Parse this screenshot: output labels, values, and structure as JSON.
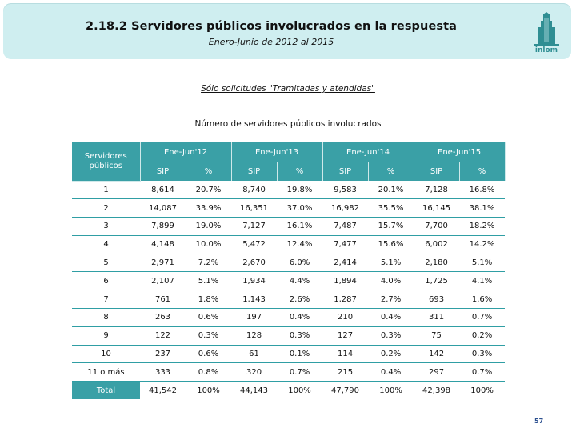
{
  "header": {
    "title": "2.18.2 Servidores públicos involucrados en la respuesta",
    "subtitle": "Enero-Junio de 2012 al 2015",
    "logo_text": "inlom"
  },
  "note": "Sólo solicitudes \"Tramitadas y atendidas\"",
  "table": {
    "title": "Número de servidores públicos involucrados",
    "row_header": "Servidores públicos",
    "periods": [
      "Ene-Jun'12",
      "Ene-Jun'13",
      "Ene-Jun'14",
      "Ene-Jun'15"
    ],
    "sub_headers": [
      "SIP",
      "%"
    ],
    "rows": [
      {
        "label": "1",
        "values": [
          "8,614",
          "20.7%",
          "8,740",
          "19.8%",
          "9,583",
          "20.1%",
          "7,128",
          "16.8%"
        ]
      },
      {
        "label": "2",
        "values": [
          "14,087",
          "33.9%",
          "16,351",
          "37.0%",
          "16,982",
          "35.5%",
          "16,145",
          "38.1%"
        ]
      },
      {
        "label": "3",
        "values": [
          "7,899",
          "19.0%",
          "7,127",
          "16.1%",
          "7,487",
          "15.7%",
          "7,700",
          "18.2%"
        ]
      },
      {
        "label": "4",
        "values": [
          "4,148",
          "10.0%",
          "5,472",
          "12.4%",
          "7,477",
          "15.6%",
          "6,002",
          "14.2%"
        ]
      },
      {
        "label": "5",
        "values": [
          "2,971",
          "7.2%",
          "2,670",
          "6.0%",
          "2,414",
          "5.1%",
          "2,180",
          "5.1%"
        ]
      },
      {
        "label": "6",
        "values": [
          "2,107",
          "5.1%",
          "1,934",
          "4.4%",
          "1,894",
          "4.0%",
          "1,725",
          "4.1%"
        ]
      },
      {
        "label": "7",
        "values": [
          "761",
          "1.8%",
          "1,143",
          "2.6%",
          "1,287",
          "2.7%",
          "693",
          "1.6%"
        ]
      },
      {
        "label": "8",
        "values": [
          "263",
          "0.6%",
          "197",
          "0.4%",
          "210",
          "0.4%",
          "311",
          "0.7%"
        ]
      },
      {
        "label": "9",
        "values": [
          "122",
          "0.3%",
          "128",
          "0.3%",
          "127",
          "0.3%",
          "75",
          "0.2%"
        ]
      },
      {
        "label": "10",
        "values": [
          "237",
          "0.6%",
          "61",
          "0.1%",
          "114",
          "0.2%",
          "142",
          "0.3%"
        ]
      },
      {
        "label": "11 o más",
        "values": [
          "333",
          "0.8%",
          "320",
          "0.7%",
          "215",
          "0.4%",
          "297",
          "0.7%"
        ]
      },
      {
        "label": "Total",
        "values": [
          "41,542",
          "100%",
          "44,143",
          "100%",
          "47,790",
          "100%",
          "42,398",
          "100%"
        ]
      }
    ]
  },
  "page_number": "57",
  "colors": {
    "header_bg": "#cfeef0",
    "table_header_bg": "#3aa0a6",
    "row_border": "#2f9ea4",
    "page_number": "#2b4f8f"
  }
}
